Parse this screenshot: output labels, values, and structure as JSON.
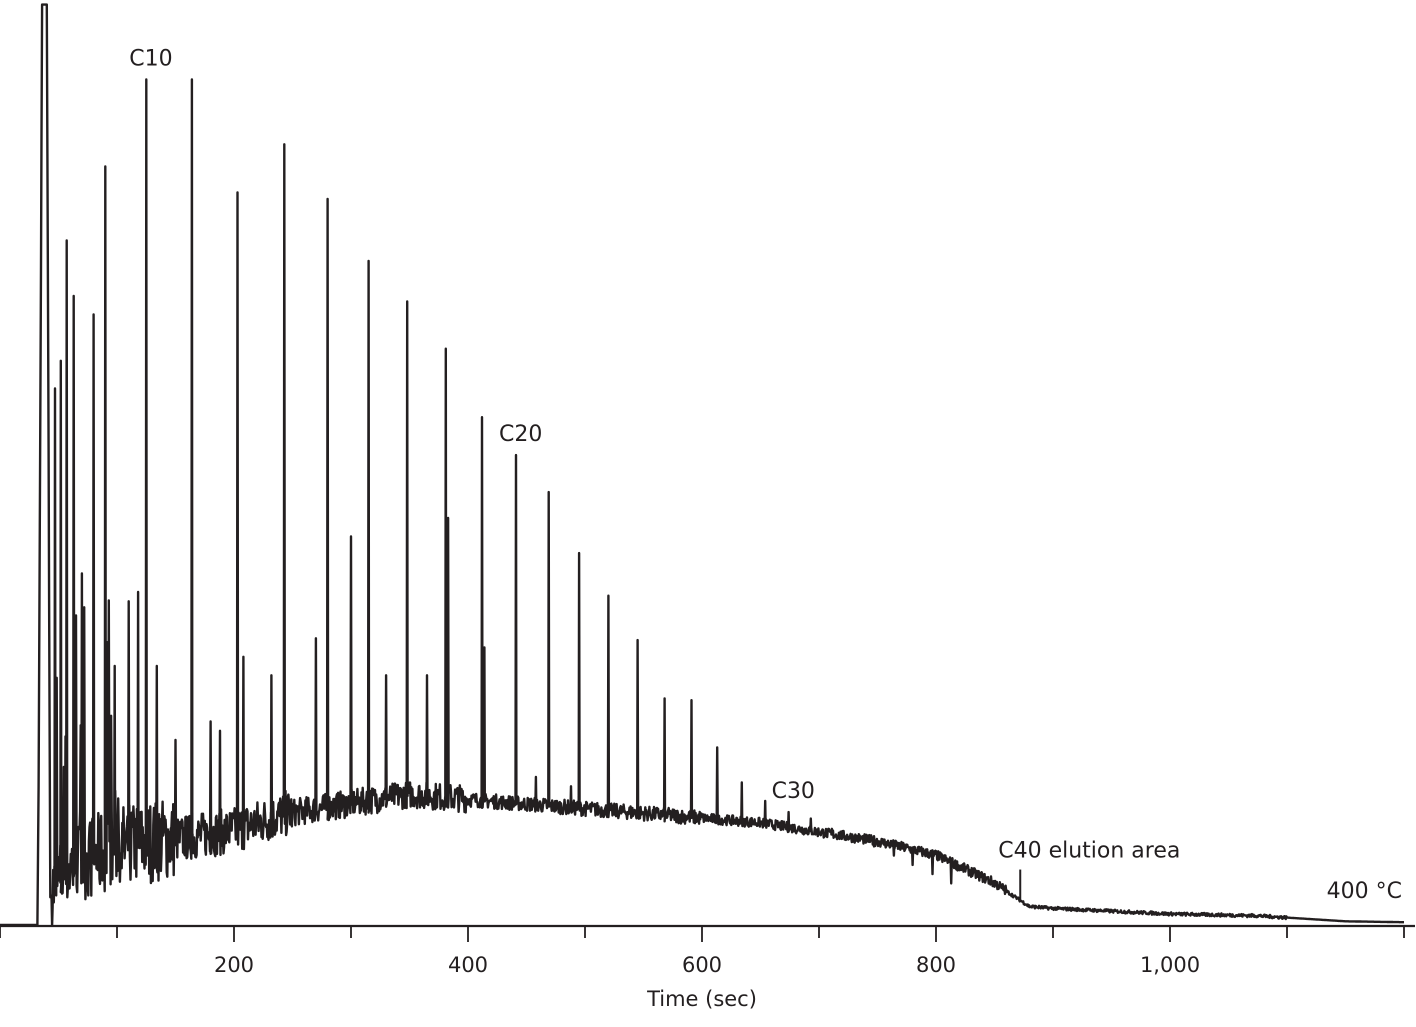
{
  "chart_data": {
    "type": "line",
    "title": "",
    "xlabel": "Time (sec)",
    "ylabel": "",
    "xlim": [
      0,
      1200
    ],
    "ylim": [
      0,
      100
    ],
    "x_ticks": [
      {
        "value": 200,
        "label": "200"
      },
      {
        "value": 400,
        "label": "400"
      },
      {
        "value": 600,
        "label": "600"
      },
      {
        "value": 800,
        "label": "800"
      },
      {
        "value": 1000,
        "label": "1,000"
      }
    ],
    "minor_tick_step": 100,
    "grid": false,
    "line_color": "#231f20",
    "series": [
      {
        "baseline": [
          [
            0,
            0
          ],
          [
            32,
            0
          ],
          [
            33,
            15
          ],
          [
            36,
            99.5
          ],
          [
            40,
            99.5
          ],
          [
            43,
            3
          ],
          [
            60,
            6
          ],
          [
            100,
            8
          ],
          [
            150,
            9
          ],
          [
            200,
            10
          ],
          [
            250,
            12
          ],
          [
            300,
            13
          ],
          [
            350,
            14
          ],
          [
            400,
            13.5
          ],
          [
            450,
            13
          ],
          [
            500,
            12.5
          ],
          [
            550,
            12
          ],
          [
            600,
            11.5
          ],
          [
            650,
            11
          ],
          [
            700,
            10
          ],
          [
            750,
            9
          ],
          [
            800,
            7.5
          ],
          [
            850,
            4.5
          ],
          [
            880,
            2
          ],
          [
            900,
            1.8
          ],
          [
            1000,
            1.2
          ],
          [
            1075,
            1
          ],
          [
            1100,
            0.8
          ],
          [
            1150,
            0.4
          ],
          [
            1200,
            0.3
          ]
        ],
        "alkane_peaks": [
          {
            "x": 125,
            "y": 91.4,
            "label": "C10"
          },
          {
            "x": 164,
            "y": 91.4
          },
          {
            "x": 203,
            "y": 79.2
          },
          {
            "x": 243,
            "y": 84.4
          },
          {
            "x": 280,
            "y": 78.5
          },
          {
            "x": 315,
            "y": 71.8
          },
          {
            "x": 348,
            "y": 67.4
          },
          {
            "x": 381,
            "y": 62.3
          },
          {
            "x": 412,
            "y": 54.9
          },
          {
            "x": 441,
            "y": 50.8,
            "label": "C20"
          },
          {
            "x": 469,
            "y": 46.8
          },
          {
            "x": 495,
            "y": 40.2
          },
          {
            "x": 520,
            "y": 35.6
          },
          {
            "x": 545,
            "y": 30.8
          },
          {
            "x": 568,
            "y": 24.5
          },
          {
            "x": 591,
            "y": 24.3
          },
          {
            "x": 613,
            "y": 19.2
          },
          {
            "x": 634,
            "y": 15.4
          },
          {
            "x": 654,
            "y": 13.4
          },
          {
            "x": 674,
            "y": 12.2,
            "label": "C30"
          },
          {
            "x": 693,
            "y": 11.5
          },
          {
            "x": 711,
            "y": 10.4
          },
          {
            "x": 729,
            "y": 9.5
          },
          {
            "x": 747,
            "y": 8.5
          },
          {
            "x": 764,
            "y": 7.5
          },
          {
            "x": 780,
            "y": 6.5
          },
          {
            "x": 797,
            "y": 5.5
          },
          {
            "x": 813,
            "y": 4.5
          }
        ],
        "minor_peaks": [
          {
            "x": 47,
            "y": 58
          },
          {
            "x": 52,
            "y": 61
          },
          {
            "x": 57,
            "y": 74
          },
          {
            "x": 63,
            "y": 68
          },
          {
            "x": 70,
            "y": 38
          },
          {
            "x": 80,
            "y": 66
          },
          {
            "x": 90,
            "y": 82
          },
          {
            "x": 98,
            "y": 28
          },
          {
            "x": 110,
            "y": 35
          },
          {
            "x": 118,
            "y": 36
          },
          {
            "x": 134,
            "y": 28
          },
          {
            "x": 150,
            "y": 20
          },
          {
            "x": 180,
            "y": 22
          },
          {
            "x": 188,
            "y": 21
          },
          {
            "x": 208,
            "y": 29
          },
          {
            "x": 232,
            "y": 27
          },
          {
            "x": 270,
            "y": 31
          },
          {
            "x": 300,
            "y": 42
          },
          {
            "x": 330,
            "y": 27
          },
          {
            "x": 365,
            "y": 27
          },
          {
            "x": 383,
            "y": 44
          },
          {
            "x": 414,
            "y": 30
          },
          {
            "x": 458,
            "y": 16
          },
          {
            "x": 488,
            "y": 15
          }
        ],
        "noise_seed": 7
      }
    ],
    "annotations": [
      {
        "text": "C10",
        "x": 125,
        "y": 91.4
      },
      {
        "text": "C20",
        "x": 441,
        "y": 50.8
      },
      {
        "text": "C30",
        "x": 674,
        "y": 12.2
      },
      {
        "text": "C40 elution area",
        "x": 872,
        "y": 3.4
      },
      {
        "text": "400 °C",
        "x": 1200,
        "y": 0.3
      }
    ]
  }
}
